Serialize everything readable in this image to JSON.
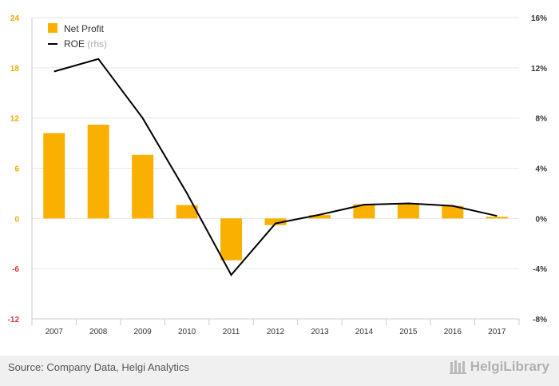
{
  "chart_data": {
    "type": "bar",
    "categories": [
      "2007",
      "2008",
      "2009",
      "2010",
      "2011",
      "2012",
      "2013",
      "2014",
      "2015",
      "2016",
      "2017"
    ],
    "series": [
      {
        "name": "Net Profit",
        "type": "bar",
        "axis": "left",
        "values": [
          10.2,
          11.2,
          7.6,
          1.6,
          -5.0,
          -0.8,
          0.4,
          1.7,
          1.8,
          1.5,
          0.2
        ]
      },
      {
        "name": "ROE",
        "name_suffix": "(rhs)",
        "type": "line",
        "axis": "right",
        "values": [
          11.7,
          12.7,
          8.0,
          2.0,
          -4.5,
          -0.4,
          0.3,
          1.1,
          1.2,
          1.0,
          0.2
        ]
      }
    ],
    "y_left": {
      "lim": [
        -12,
        24
      ],
      "ticks": [
        "-12",
        "-6",
        "0",
        "6",
        "12",
        "18",
        "24"
      ]
    },
    "y_right": {
      "lim": [
        -8,
        16
      ],
      "ticks": [
        "-8%",
        "-4%",
        "0%",
        "4%",
        "8%",
        "12%",
        "16%"
      ]
    },
    "grid": true,
    "legend_position": "top-left",
    "colors": {
      "bar": "#f9b000",
      "line": "#000000",
      "negative_tick": "#d63a3a",
      "left_tick": "#f0a800"
    }
  },
  "footer": {
    "source": "Source: Company Data, Helgi Analytics",
    "brand": "HelgiLibrary",
    "brand_icon": "helgi-library-logo-icon"
  }
}
